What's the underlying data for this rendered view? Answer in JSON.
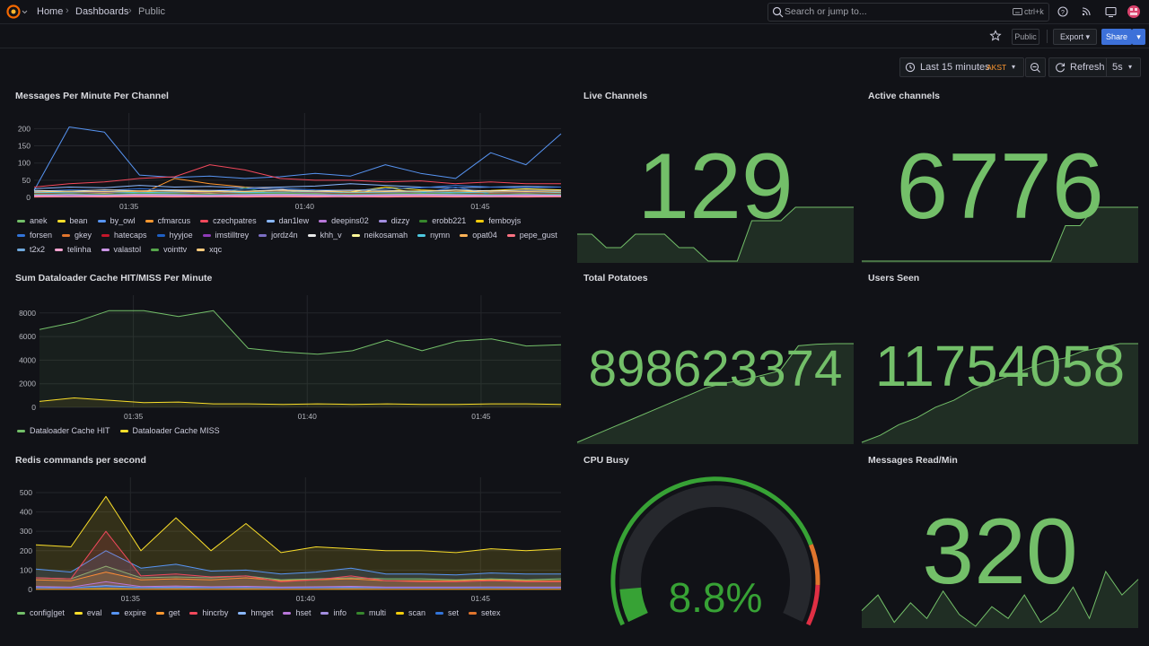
{
  "topbar": {
    "breadcrumbs": [
      "Home",
      "Dashboards",
      "Public"
    ],
    "search": "Search or jump to...",
    "shortcut": "ctrl+k"
  },
  "toolbar": {
    "public": "Public",
    "export": "Export",
    "share": "Share",
    "time_range": "Last 15 minutes",
    "timezone": "AKST",
    "refresh": "Refresh",
    "interval": "5s"
  },
  "panels": [
    {
      "type": "timeseries",
      "title": "Messages Per Minute Per Channel",
      "x": [
        32.3,
        33.3,
        34.3,
        35.3,
        36.3,
        37.3,
        38.3,
        39.3,
        40.3,
        41.3,
        42.3,
        43.3,
        44.3,
        45.3,
        46.3,
        47.3
      ],
      "xlim": [
        32.3,
        47.3
      ],
      "xticks": [
        {
          "value": 35,
          "label": "01:35"
        },
        {
          "value": 40,
          "label": "01:40"
        },
        {
          "value": 45,
          "label": "01:45"
        }
      ],
      "ylim": [
        0,
        235
      ],
      "yticks": [
        0,
        50,
        100,
        150,
        200
      ],
      "grid": true,
      "fill_opacity": 0,
      "series": [
        {
          "name": "anek",
          "color": "#73bf69",
          "values": [
            8,
            10,
            12,
            9,
            11,
            10,
            8,
            12,
            10,
            9,
            11,
            13,
            10,
            12,
            9,
            11
          ]
        },
        {
          "name": "bean",
          "color": "#fade2a",
          "values": [
            15,
            18,
            14,
            16,
            20,
            17,
            15,
            14,
            18,
            16,
            30,
            22,
            18,
            20,
            25,
            22
          ]
        },
        {
          "name": "by_owl",
          "color": "#5794f2",
          "values": [
            20,
            205,
            190,
            65,
            58,
            62,
            55,
            60,
            70,
            62,
            95,
            70,
            55,
            130,
            95,
            185
          ]
        },
        {
          "name": "cfmarcus",
          "color": "#ff9830",
          "values": [
            5,
            6,
            4,
            8,
            55,
            40,
            30,
            25,
            6,
            5,
            4,
            6,
            5,
            7,
            5,
            6
          ]
        },
        {
          "name": "czechpatres",
          "color": "#f2495c",
          "values": [
            30,
            40,
            45,
            55,
            60,
            95,
            80,
            55,
            50,
            50,
            45,
            48,
            40,
            45,
            40,
            40
          ]
        },
        {
          "name": "dan1lew",
          "color": "#8ab8ff",
          "values": [
            25,
            30,
            28,
            35,
            30,
            32,
            28,
            30,
            33,
            40,
            35,
            30,
            28,
            30,
            32,
            30
          ]
        },
        {
          "name": "deepins02",
          "color": "#b877d9",
          "values": [
            3,
            4,
            3,
            5,
            4,
            3,
            4,
            5,
            4,
            3,
            4,
            5,
            4,
            3,
            4,
            3
          ]
        },
        {
          "name": "dizzy",
          "color": "#a38ee0",
          "values": [
            10,
            12,
            8,
            10,
            14,
            12,
            9,
            11,
            13,
            10,
            12,
            14,
            11,
            10,
            12,
            11
          ]
        },
        {
          "name": "erobb221",
          "color": "#37872d",
          "values": [
            2,
            3,
            2,
            3,
            4,
            3,
            28,
            5,
            3,
            2,
            3,
            4,
            3,
            2,
            3,
            3
          ]
        },
        {
          "name": "femboyjs",
          "color": "#f2cc0c",
          "values": [
            6,
            5,
            7,
            6,
            8,
            7,
            6,
            8,
            7,
            6,
            30,
            10,
            7,
            12,
            9,
            8
          ]
        },
        {
          "name": "forsen",
          "color": "#3274d9",
          "values": [
            18,
            22,
            20,
            25,
            22,
            20,
            24,
            26,
            22,
            20,
            25,
            28,
            35,
            30,
            28,
            30
          ]
        },
        {
          "name": "gkey",
          "color": "#e0752d",
          "values": [
            4,
            5,
            4,
            6,
            5,
            4,
            5,
            6,
            5,
            4,
            5,
            6,
            5,
            4,
            5,
            4
          ]
        },
        {
          "name": "hatecaps",
          "color": "#c4162a",
          "values": [
            12,
            14,
            13,
            15,
            14,
            12,
            13,
            15,
            14,
            12,
            13,
            15,
            14,
            12,
            13,
            12
          ]
        },
        {
          "name": "hyyjoe",
          "color": "#1f60c4",
          "values": [
            8,
            9,
            10,
            12,
            9,
            8,
            10,
            11,
            9,
            8,
            10,
            12,
            30,
            10,
            9,
            10
          ]
        },
        {
          "name": "imstilltrey",
          "color": "#8f3bb8",
          "values": [
            5,
            6,
            5,
            7,
            6,
            5,
            6,
            7,
            6,
            5,
            6,
            7,
            6,
            5,
            6,
            5
          ]
        },
        {
          "name": "jordz4n",
          "color": "#7c6fc4",
          "values": [
            3,
            4,
            3,
            4,
            5,
            4,
            3,
            4,
            5,
            4,
            3,
            4,
            5,
            4,
            3,
            4
          ]
        },
        {
          "name": "khh_v",
          "color": "#e8e8e8",
          "values": [
            20,
            18,
            22,
            19,
            21,
            20,
            18,
            22,
            19,
            21,
            20,
            18,
            22,
            19,
            21,
            20
          ]
        },
        {
          "name": "neikosamah",
          "color": "#fff899",
          "values": [
            9,
            10,
            11,
            9,
            10,
            11,
            9,
            10,
            11,
            9,
            10,
            11,
            9,
            10,
            11,
            9
          ]
        },
        {
          "name": "nymn",
          "color": "#4ec9e0",
          "values": [
            14,
            15,
            16,
            14,
            15,
            16,
            14,
            15,
            16,
            14,
            15,
            16,
            14,
            15,
            16,
            14
          ]
        },
        {
          "name": "opat04",
          "color": "#ffb357",
          "values": [
            2,
            2,
            3,
            2,
            3,
            2,
            3,
            2,
            3,
            2,
            3,
            2,
            3,
            2,
            3,
            2
          ]
        },
        {
          "name": "pepe_gust",
          "color": "#ff7383",
          "values": [
            1,
            2,
            1,
            2,
            1,
            2,
            1,
            2,
            1,
            2,
            1,
            2,
            1,
            2,
            1,
            2
          ]
        },
        {
          "name": "t2x2",
          "color": "#6fa8dc",
          "values": [
            7,
            8,
            7,
            9,
            8,
            7,
            8,
            9,
            8,
            7,
            8,
            9,
            8,
            7,
            8,
            7
          ]
        },
        {
          "name": "telinha",
          "color": "#f5a3d0",
          "values": [
            4,
            3,
            4,
            5,
            4,
            3,
            4,
            5,
            4,
            3,
            4,
            5,
            4,
            3,
            4,
            4
          ]
        },
        {
          "name": "valastol",
          "color": "#ca95e5",
          "values": [
            6,
            7,
            6,
            8,
            7,
            6,
            7,
            8,
            7,
            6,
            7,
            8,
            7,
            6,
            7,
            6
          ]
        },
        {
          "name": "vointtv",
          "color": "#56a64b",
          "values": [
            10,
            11,
            10,
            12,
            11,
            10,
            11,
            12,
            11,
            10,
            11,
            12,
            11,
            10,
            11,
            10
          ]
        },
        {
          "name": "xqc",
          "color": "#ffcb7d",
          "values": [
            16,
            18,
            17,
            19,
            18,
            16,
            17,
            19,
            18,
            16,
            17,
            19,
            18,
            16,
            17,
            16
          ]
        }
      ]
    },
    {
      "type": "stat",
      "title": "Live Channels",
      "value": 129,
      "color": "#73bf69",
      "sparkline": [
        127,
        127,
        126,
        126,
        127,
        127,
        127,
        126,
        126,
        125,
        125,
        125,
        128,
        128,
        128,
        129,
        129,
        129,
        129,
        129
      ]
    },
    {
      "type": "stat",
      "title": "Active channels",
      "value": 6776,
      "color": "#73bf69",
      "sparkline": [
        6700,
        6700,
        6700,
        6700,
        6700,
        6700,
        6700,
        6700,
        6700,
        6700,
        6700,
        6700,
        6700,
        6700,
        6750,
        6750,
        6776,
        6776,
        6776,
        6776
      ]
    },
    {
      "type": "timeseries",
      "title": "Sum Dataloader Cache HIT/MISS Per Minute",
      "x": [
        32.3,
        33.3,
        34.3,
        35.3,
        36.3,
        37.3,
        38.3,
        39.3,
        40.3,
        41.3,
        42.3,
        43.3,
        44.3,
        45.3,
        46.3,
        47.3
      ],
      "xlim": [
        32.3,
        47.3
      ],
      "xticks": [
        {
          "value": 35,
          "label": "01:35"
        },
        {
          "value": 40,
          "label": "01:40"
        },
        {
          "value": 45,
          "label": "01:45"
        }
      ],
      "ylim": [
        0,
        9200
      ],
      "yticks": [
        0,
        2000,
        4000,
        6000,
        8000
      ],
      "grid": true,
      "fill_opacity": 0.08,
      "series": [
        {
          "name": "Dataloader Cache HIT",
          "color": "#73bf69",
          "values": [
            6600,
            7200,
            8200,
            8200,
            7700,
            8200,
            5000,
            4700,
            4500,
            4800,
            5700,
            4800,
            5600,
            5800,
            5200,
            5300
          ]
        },
        {
          "name": "Dataloader Cache MISS",
          "color": "#fade2a",
          "values": [
            500,
            800,
            600,
            400,
            450,
            300,
            300,
            250,
            300,
            250,
            300,
            250,
            250,
            300,
            300,
            250
          ]
        }
      ]
    },
    {
      "type": "stat",
      "title": "Total Potatoes",
      "value": 898623374,
      "color": "#73bf69",
      "sparkline": [
        898560000,
        898565000,
        898570000,
        898575000,
        898580000,
        898585000,
        898590000,
        898595000,
        898598000,
        898600000,
        898603000,
        898606000,
        898622000,
        898623000,
        898623374,
        898623374
      ]
    },
    {
      "type": "stat",
      "title": "Users Seen",
      "value": 11754058,
      "color": "#73bf69",
      "sparkline": [
        11740000,
        11741000,
        11742500,
        11743500,
        11745000,
        11746000,
        11747500,
        11748500,
        11749500,
        11750500,
        11751500,
        11752000,
        11753000,
        11753500,
        11754058,
        11754058
      ]
    },
    {
      "type": "timeseries",
      "title": "Redis commands per second",
      "x": [
        32.3,
        33.3,
        34.3,
        35.3,
        36.3,
        37.3,
        38.3,
        39.3,
        40.3,
        41.3,
        42.3,
        43.3,
        44.3,
        45.3,
        46.3,
        47.3
      ],
      "xlim": [
        32.3,
        47.3
      ],
      "xticks": [
        {
          "value": 35,
          "label": "01:35"
        },
        {
          "value": 40,
          "label": "01:40"
        },
        {
          "value": 45,
          "label": "01:45"
        }
      ],
      "ylim": [
        0,
        560
      ],
      "yticks": [
        0,
        100,
        200,
        300,
        400,
        500
      ],
      "grid": true,
      "fill_opacity": 0.15,
      "series": [
        {
          "name": "config|get",
          "color": "#73bf69",
          "values": [
            60,
            55,
            120,
            60,
            65,
            60,
            70,
            50,
            55,
            60,
            55,
            55,
            50,
            55,
            50,
            55
          ]
        },
        {
          "name": "eval",
          "color": "#fade2a",
          "values": [
            230,
            220,
            480,
            200,
            370,
            200,
            340,
            190,
            220,
            210,
            200,
            200,
            190,
            210,
            200,
            210
          ]
        },
        {
          "name": "expire",
          "color": "#5794f2",
          "values": [
            105,
            90,
            200,
            110,
            130,
            95,
            100,
            80,
            90,
            110,
            80,
            80,
            75,
            85,
            80,
            80
          ]
        },
        {
          "name": "get",
          "color": "#ff9830",
          "values": [
            50,
            45,
            90,
            50,
            55,
            50,
            60,
            45,
            50,
            55,
            45,
            45,
            45,
            50,
            45,
            45
          ]
        },
        {
          "name": "hincrby",
          "color": "#f2495c",
          "values": [
            60,
            55,
            300,
            70,
            80,
            65,
            70,
            40,
            50,
            70,
            45,
            40,
            40,
            45,
            40,
            40
          ]
        },
        {
          "name": "hmget",
          "color": "#8ab8ff",
          "values": [
            10,
            8,
            20,
            10,
            12,
            10,
            11,
            9,
            10,
            12,
            9,
            9,
            9,
            10,
            9,
            9
          ]
        },
        {
          "name": "hset",
          "color": "#b877d9",
          "values": [
            15,
            12,
            40,
            15,
            18,
            14,
            16,
            12,
            14,
            16,
            12,
            12,
            12,
            13,
            12,
            12
          ]
        },
        {
          "name": "info",
          "color": "#a38ee0",
          "values": [
            2,
            2,
            2,
            2,
            2,
            2,
            2,
            2,
            2,
            2,
            2,
            2,
            2,
            2,
            2,
            2
          ]
        },
        {
          "name": "multi",
          "color": "#37872d",
          "values": [
            5,
            5,
            8,
            5,
            6,
            5,
            6,
            5,
            5,
            6,
            5,
            5,
            5,
            5,
            5,
            5
          ]
        },
        {
          "name": "scan",
          "color": "#f2cc0c",
          "values": [
            1,
            1,
            1,
            1,
            1,
            1,
            1,
            1,
            1,
            1,
            1,
            1,
            1,
            1,
            1,
            1
          ]
        },
        {
          "name": "set",
          "color": "#3274d9",
          "values": [
            8,
            7,
            15,
            8,
            9,
            8,
            9,
            7,
            8,
            9,
            7,
            7,
            7,
            8,
            7,
            7
          ]
        },
        {
          "name": "setex",
          "color": "#e0752d",
          "values": [
            3,
            3,
            6,
            3,
            4,
            3,
            4,
            3,
            3,
            4,
            3,
            3,
            3,
            3,
            3,
            3
          ]
        }
      ]
    },
    {
      "type": "gauge",
      "title": "CPU Busy",
      "value": 8.8,
      "value_label": "8.8%",
      "range": [
        0,
        100
      ],
      "color": "#37a235",
      "thresholds": [
        {
          "value": 80,
          "color": "#e0752d"
        },
        {
          "value": 90,
          "color": "#e02f44"
        }
      ]
    },
    {
      "type": "stat",
      "title": "Messages Read/Min",
      "value": 320,
      "color": "#73bf69",
      "sparkline": [
        280,
        300,
        265,
        290,
        270,
        305,
        275,
        260,
        285,
        270,
        300,
        265,
        280,
        310,
        270,
        330,
        300,
        320
      ]
    }
  ]
}
